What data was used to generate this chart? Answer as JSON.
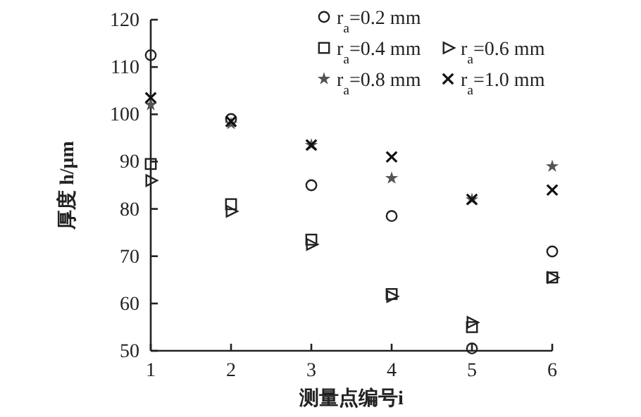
{
  "chart_data": {
    "type": "scatter",
    "xlabel": "测量点编号i",
    "ylabel": "厚度 h/μm",
    "x": [
      1,
      2,
      3,
      4,
      5,
      6
    ],
    "xlim": [
      1,
      6
    ],
    "xticks": [
      1,
      2,
      3,
      4,
      5,
      6
    ],
    "ylim": [
      50,
      120
    ],
    "yticks": [
      50,
      60,
      70,
      80,
      90,
      100,
      110,
      120
    ],
    "grid": false,
    "legend": "top right",
    "series": [
      {
        "name": "r$_{a}$=0.2 mm",
        "color": "#222222",
        "marker": "circle",
        "values": [
          112.5,
          99,
          85,
          78.5,
          50.5,
          71
        ]
      },
      {
        "name": "r$_{a}$=0.4 mm",
        "color": "#222222",
        "marker": "square",
        "values": [
          89.5,
          81,
          73.5,
          62,
          55,
          65.5
        ]
      },
      {
        "name": "r$_{a}$=0.6 mm",
        "color": "#222222",
        "marker": "triangle",
        "values": [
          86,
          79.5,
          72.5,
          61.5,
          56,
          65.5
        ]
      },
      {
        "name": "r$_{a}$=0.8 mm",
        "color": "#555555",
        "marker": "star",
        "values": [
          102,
          98,
          93.5,
          86.5,
          82,
          89
        ]
      },
      {
        "name": "r$_{a}$=1.0 mm",
        "color": "#111111",
        "marker": "cross",
        "values": [
          103.5,
          98.5,
          93.5,
          91,
          82,
          84
        ]
      }
    ]
  }
}
